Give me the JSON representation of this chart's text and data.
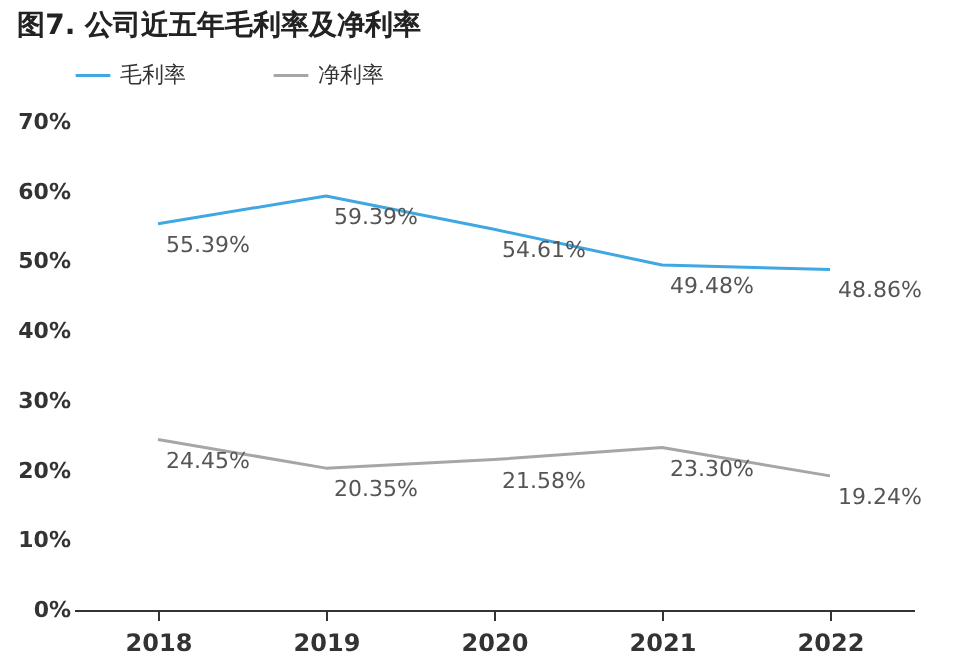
{
  "chart_data": {
    "type": "line",
    "title": "图7. 公司近五年毛利率及净利率",
    "categories": [
      "2018",
      "2019",
      "2020",
      "2021",
      "2022"
    ],
    "series": [
      {
        "name": "毛利率",
        "color": "#3fa7e1",
        "values": [
          55.39,
          59.39,
          54.61,
          49.48,
          48.86
        ],
        "value_labels": [
          "55.39%",
          "59.39%",
          "54.61%",
          "49.48%",
          "48.86%"
        ]
      },
      {
        "name": "净利率",
        "color": "#a6a6a6",
        "values": [
          24.45,
          20.35,
          21.58,
          23.3,
          19.24
        ],
        "value_labels": [
          "24.45%",
          "20.35%",
          "21.58%",
          "23.30%",
          "19.24%"
        ]
      }
    ],
    "ylim": [
      0,
      70
    ],
    "yticks": [
      {
        "value": 0,
        "label": "0%"
      },
      {
        "value": 10,
        "label": "10%"
      },
      {
        "value": 20,
        "label": "20%"
      },
      {
        "value": 30,
        "label": "30%"
      },
      {
        "value": 40,
        "label": "40%"
      },
      {
        "value": 50,
        "label": "50%"
      },
      {
        "value": 60,
        "label": "60%"
      },
      {
        "value": 70,
        "label": "70%"
      }
    ],
    "grid": false,
    "legend": "top",
    "marker": "none",
    "line_style": "solid"
  }
}
